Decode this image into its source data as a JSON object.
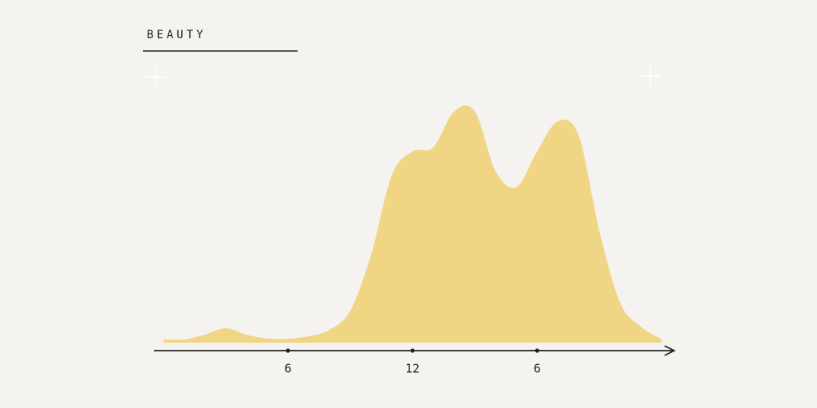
{
  "chart_data": {
    "type": "area",
    "title": "BEAUTY",
    "x": [
      0,
      1,
      2,
      3,
      4,
      5,
      6,
      7,
      8,
      9,
      10,
      11,
      12,
      13,
      14,
      15,
      16,
      17,
      18,
      19,
      20,
      21,
      22,
      23,
      24
    ],
    "values": [
      4,
      4,
      10,
      18,
      10,
      5,
      5,
      8,
      16,
      40,
      110,
      210,
      240,
      245,
      290,
      290,
      215,
      195,
      240,
      278,
      260,
      140,
      50,
      20,
      4
    ],
    "color": "#f0d585",
    "xlim": [
      -0.45,
      24.6
    ],
    "xticks": [
      6,
      12,
      {
        "value": 18,
        "label": "6"
      }
    ]
  }
}
